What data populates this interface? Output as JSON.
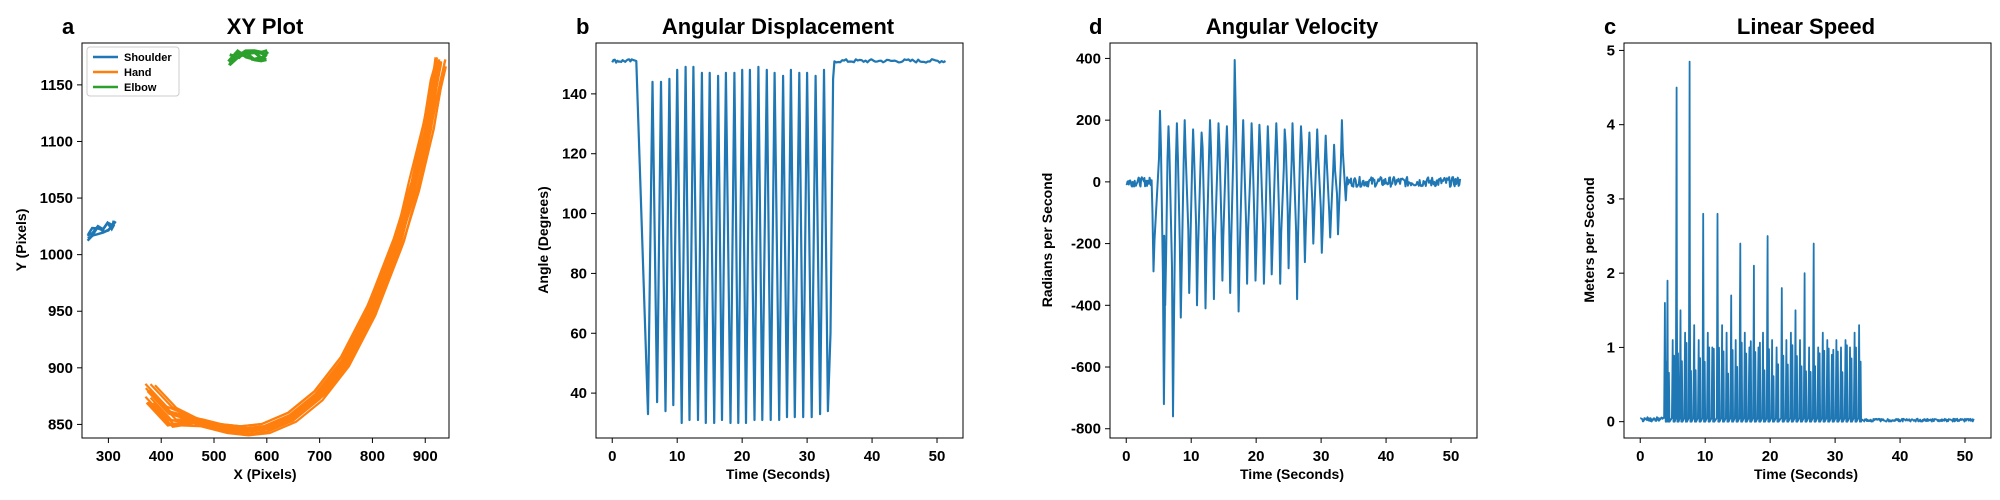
{
  "colors": {
    "shoulder": "#1f77b4",
    "hand": "#ff7f0e",
    "elbow": "#2ca02c",
    "line": "#1f77b4",
    "axes": "#000000",
    "background": "#ffffff"
  },
  "panels": {
    "a": {
      "letter": "a",
      "title": "XY Plot",
      "xlabel": "X (Pixels)",
      "ylabel": "Y (Pixels)"
    },
    "b": {
      "letter": "b",
      "title": "Angular Displacement",
      "xlabel": "Time (Seconds)",
      "ylabel": "Angle (Degrees)"
    },
    "d": {
      "letter": "d",
      "title": "Angular Velocity",
      "xlabel": "Time (Seconds)",
      "ylabel": "Radians per Second"
    },
    "c": {
      "letter": "c",
      "title": "Linear Speed",
      "xlabel": "Time (Seconds)",
      "ylabel": "Meters per Second"
    }
  },
  "legend": [
    "Shoulder",
    "Hand",
    "Elbow"
  ],
  "chart_data": [
    {
      "type": "scatter",
      "title": "XY Plot",
      "xlabel": "X (Pixels)",
      "ylabel": "Y (Pixels)",
      "xlim": [
        250,
        945
      ],
      "ylim": [
        838,
        1187
      ],
      "xticks": [
        300,
        400,
        500,
        600,
        700,
        800,
        900
      ],
      "yticks": [
        850,
        900,
        950,
        1000,
        1050,
        1100,
        1150
      ],
      "legend_position": "upper-left",
      "series": [
        {
          "name": "Shoulder",
          "x": [
            262,
            270,
            280,
            290,
            300,
            308,
            312
          ],
          "y": [
            1016,
            1020,
            1022,
            1023,
            1025,
            1026,
            1028
          ]
        },
        {
          "name": "Hand",
          "x": [
            380,
            420,
            470,
            520,
            560,
            600,
            650,
            700,
            750,
            800,
            850,
            880,
            905,
            920,
            930
          ],
          "y": [
            885,
            865,
            852,
            846,
            844,
            846,
            856,
            875,
            905,
            950,
            1010,
            1060,
            1110,
            1150,
            1170
          ]
        },
        {
          "name": "Elbow",
          "x": [
            530,
            545,
            560,
            575,
            590,
            600
          ],
          "y": [
            1172,
            1175,
            1178,
            1176,
            1174,
            1177
          ]
        }
      ]
    },
    {
      "type": "line",
      "title": "Angular Displacement",
      "xlabel": "Time (Seconds)",
      "ylabel": "Angle (Degrees)",
      "xlim": [
        -2.5,
        54
      ],
      "ylim": [
        25,
        157
      ],
      "xticks": [
        0,
        10,
        20,
        30,
        40,
        50
      ],
      "yticks": [
        40,
        60,
        80,
        100,
        120,
        140
      ],
      "series": [
        {
          "x": [
            0,
            3,
            3.6,
            4.0,
            4.5,
            5.0,
            6.0,
            7.3,
            8.5,
            9.6,
            10.8,
            12.0,
            13.2,
            14.4,
            15.6,
            16.8,
            18.0,
            19.2,
            20.4,
            21.6,
            22.8,
            24.0,
            25.2,
            26.4,
            27.6,
            28.8,
            30.0,
            31.2,
            32.4,
            33.3,
            33.8,
            34.3,
            51.5
          ],
          "y": [
            151,
            151,
            148,
            125,
            95,
            65,
            33,
            35,
            33,
            31,
            30,
            30,
            30,
            30,
            30,
            30,
            30,
            30,
            30,
            30,
            30,
            31,
            31,
            31,
            31,
            32,
            32,
            33,
            33,
            34,
            140,
            151,
            151
          ],
          "troughs_t": [
            5.5,
            6.9,
            8.2,
            9.4,
            10.7,
            11.9,
            13.2,
            14.4,
            15.7,
            16.9,
            18.2,
            19.4,
            20.6,
            21.9,
            23.1,
            24.4,
            25.7,
            26.9,
            28.1,
            29.4,
            30.7,
            32.0,
            33.2
          ],
          "troughs_v": [
            33,
            37,
            34,
            36,
            30,
            31,
            31,
            30,
            30,
            31,
            30,
            30,
            30,
            31,
            31,
            31,
            31,
            32,
            32,
            32,
            32,
            33,
            34
          ],
          "peaks_t": [
            6.2,
            7.5,
            8.8,
            10.0,
            11.3,
            12.5,
            13.8,
            15.0,
            16.3,
            17.5,
            18.8,
            20.0,
            21.2,
            22.5,
            23.8,
            25.0,
            26.3,
            27.5,
            28.8,
            30.0,
            31.3,
            32.6
          ],
          "peaks_v": [
            144,
            144,
            145,
            148,
            149,
            149,
            147,
            147,
            146,
            147,
            147,
            148,
            148,
            149,
            148,
            147,
            146,
            148,
            147,
            147,
            146,
            148
          ]
        }
      ]
    },
    {
      "type": "line",
      "title": "Angular Velocity",
      "xlabel": "Time (Seconds)",
      "ylabel": "Radians per Second",
      "xlim": [
        -2.5,
        54
      ],
      "ylim": [
        -830,
        450
      ],
      "xticks": [
        0,
        10,
        20,
        30,
        40,
        50
      ],
      "yticks": [
        -800,
        -600,
        -400,
        -200,
        0,
        200,
        400
      ],
      "series": [
        {
          "peaks_t": [
            5.2,
            6.5,
            7.8,
            9.0,
            10.3,
            11.6,
            12.9,
            14.2,
            15.5,
            16.7,
            18.0,
            19.3,
            20.5,
            21.8,
            23.1,
            24.4,
            25.6,
            26.9,
            28.2,
            29.4,
            30.7,
            32.0,
            33.2
          ],
          "peaks_v": [
            230,
            180,
            190,
            200,
            170,
            160,
            200,
            190,
            180,
            395,
            200,
            190,
            185,
            180,
            190,
            170,
            190,
            180,
            160,
            170,
            150,
            120,
            200
          ],
          "troughs_t": [
            4.2,
            5.8,
            6.0,
            7.2,
            8.4,
            9.7,
            10.9,
            12.2,
            13.5,
            14.8,
            16.0,
            17.3,
            18.6,
            19.9,
            21.2,
            22.4,
            23.7,
            25.0,
            26.3,
            27.5,
            28.8,
            30.1,
            31.4,
            32.6
          ],
          "troughs_v": [
            -290,
            -720,
            -400,
            -760,
            -440,
            -360,
            -400,
            -410,
            -380,
            -320,
            -360,
            -420,
            -330,
            -320,
            -330,
            -300,
            -330,
            -280,
            -380,
            -260,
            -200,
            -230,
            -180,
            -170
          ]
        }
      ]
    },
    {
      "type": "line",
      "title": "Linear Speed",
      "xlabel": "Time (Seconds)",
      "ylabel": "Meters per Second",
      "xlim": [
        -2.5,
        54
      ],
      "ylim": [
        -0.22,
        5.1
      ],
      "xticks": [
        0,
        10,
        20,
        30,
        40,
        50
      ],
      "yticks": [
        0,
        1,
        2,
        3,
        4,
        5
      ],
      "series": [
        {
          "spike_t": [
            3.8,
            4.2,
            5.0,
            5.6,
            6.2,
            6.9,
            7.6,
            8.3,
            9.0,
            9.7,
            10.4,
            11.1,
            11.9,
            12.6,
            13.3,
            14.0,
            14.7,
            15.4,
            16.1,
            16.8,
            17.5,
            18.2,
            18.9,
            19.6,
            20.3,
            21.0,
            21.8,
            22.5,
            23.2,
            23.9,
            24.6,
            25.3,
            26.0,
            26.7,
            27.4,
            28.1,
            28.8,
            29.5,
            30.2,
            30.9,
            31.6,
            32.3,
            33.0,
            33.7
          ],
          "spike_v": [
            1.6,
            1.9,
            1.1,
            4.5,
            1.5,
            1.2,
            4.85,
            1.3,
            1.1,
            2.8,
            1.2,
            1.0,
            2.8,
            1.3,
            1.2,
            1.7,
            1.1,
            2.4,
            1.2,
            1.0,
            2.1,
            1.0,
            1.2,
            2.5,
            1.1,
            1.0,
            1.8,
            1.1,
            1.2,
            1.5,
            1.1,
            2.0,
            1.0,
            2.4,
            1.0,
            1.2,
            1.1,
            0.9,
            1.1,
            1.0,
            1.1,
            1.0,
            1.2,
            1.3
          ]
        }
      ]
    }
  ]
}
